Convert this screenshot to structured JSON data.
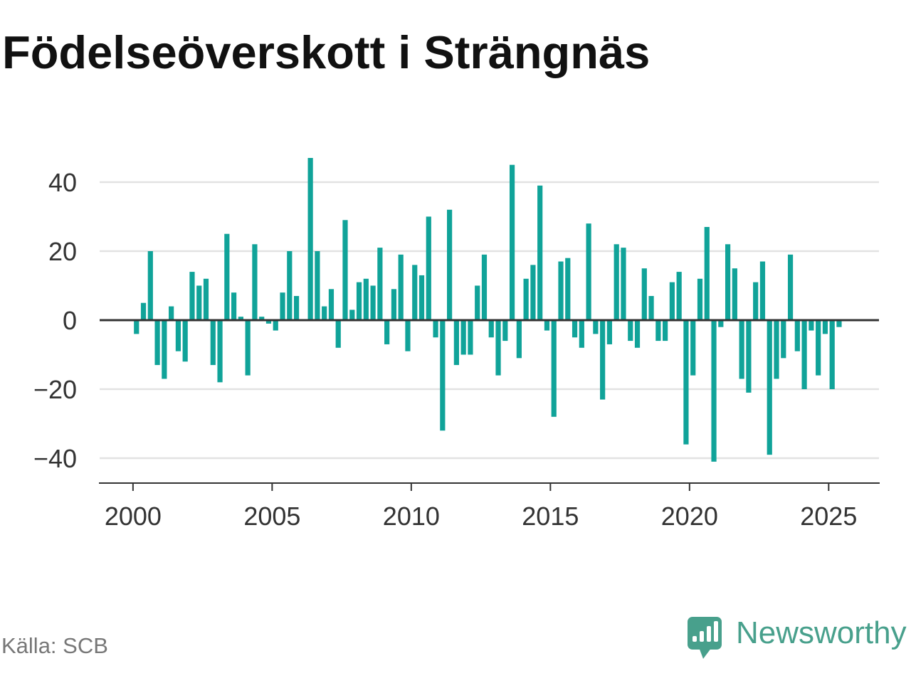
{
  "chart_data": {
    "type": "bar",
    "title": "Födelseöverskott i Strängnäs",
    "grid": true,
    "x_axis": {
      "range": [
        "1998-10-01",
        "2026-11-01"
      ],
      "ticks": [
        {
          "value": "2000-01-01",
          "label": "2000"
        },
        {
          "value": "2005-01-01",
          "label": "2005"
        },
        {
          "value": "2010-01-01",
          "label": "2010"
        },
        {
          "value": "2015-01-01",
          "label": "2015"
        },
        {
          "value": "2020-01-01",
          "label": "2020"
        },
        {
          "value": "2025-01-01",
          "label": "2025"
        }
      ]
    },
    "y_axis": {
      "range": [
        -47,
        47
      ],
      "ticks": [
        {
          "value": 40,
          "label": "40"
        },
        {
          "value": 20,
          "label": "20"
        },
        {
          "value": 0,
          "label": "0"
        },
        {
          "value": -20,
          "label": "−20"
        },
        {
          "value": -40,
          "label": "−40"
        }
      ]
    },
    "x": [
      "2000-01-01",
      "2000-04-01",
      "2000-07-01",
      "2000-10-01",
      "2001-01-01",
      "2001-04-01",
      "2001-07-01",
      "2001-10-01",
      "2002-01-01",
      "2002-04-01",
      "2002-07-01",
      "2002-10-01",
      "2003-01-01",
      "2003-04-01",
      "2003-07-01",
      "2003-10-01",
      "2004-01-01",
      "2004-04-01",
      "2004-07-01",
      "2004-10-01",
      "2005-01-01",
      "2005-04-01",
      "2005-07-01",
      "2005-10-01",
      "2006-01-01",
      "2006-04-01",
      "2006-07-01",
      "2006-10-01",
      "2007-01-01",
      "2007-04-01",
      "2007-07-01",
      "2007-10-01",
      "2008-01-01",
      "2008-04-01",
      "2008-07-01",
      "2008-10-01",
      "2009-01-01",
      "2009-04-01",
      "2009-07-01",
      "2009-10-01",
      "2010-01-01",
      "2010-04-01",
      "2010-07-01",
      "2010-10-01",
      "2011-01-01",
      "2011-04-01",
      "2011-07-01",
      "2011-10-01",
      "2012-01-01",
      "2012-04-01",
      "2012-07-01",
      "2012-10-01",
      "2013-01-01",
      "2013-04-01",
      "2013-07-01",
      "2013-10-01",
      "2014-01-01",
      "2014-04-01",
      "2014-07-01",
      "2014-10-01",
      "2015-01-01",
      "2015-04-01",
      "2015-07-01",
      "2015-10-01",
      "2016-01-01",
      "2016-04-01",
      "2016-07-01",
      "2016-10-01",
      "2017-01-01",
      "2017-04-01",
      "2017-07-01",
      "2017-10-01",
      "2018-01-01",
      "2018-04-01",
      "2018-07-01",
      "2018-10-01",
      "2019-01-01",
      "2019-04-01",
      "2019-07-01",
      "2019-10-01",
      "2020-01-01",
      "2020-04-01",
      "2020-07-01",
      "2020-10-01",
      "2021-01-01",
      "2021-04-01",
      "2021-07-01",
      "2021-10-01",
      "2022-01-01",
      "2022-04-01",
      "2022-07-01",
      "2022-10-01",
      "2023-01-01",
      "2023-04-01",
      "2023-07-01",
      "2023-10-01",
      "2024-01-01",
      "2024-04-01",
      "2024-07-01",
      "2024-10-01",
      "2025-01-01",
      "2025-04-01"
    ],
    "values": [
      -4,
      5,
      20,
      -13,
      -17,
      4,
      -9,
      -12,
      14,
      10,
      12,
      -13,
      -18,
      25,
      8,
      1,
      -16,
      22,
      1,
      -1,
      -3,
      8,
      20,
      7,
      0,
      47,
      20,
      4,
      9,
      -8,
      29,
      3,
      11,
      12,
      10,
      21,
      -7,
      9,
      19,
      -9,
      16,
      13,
      30,
      -5,
      -32,
      32,
      -13,
      -10,
      -10,
      10,
      19,
      -5,
      -16,
      -6,
      45,
      -11,
      12,
      16,
      39,
      -3,
      -28,
      17,
      18,
      -5,
      -8,
      28,
      -4,
      -23,
      -7,
      22,
      21,
      -6,
      -8,
      15,
      7,
      -6,
      -6,
      11,
      14,
      -36,
      -16,
      12,
      27,
      -41,
      -2,
      22,
      15,
      -17,
      -21,
      11,
      17,
      -39,
      -17,
      -11,
      19,
      -9,
      -20,
      -3,
      -16,
      -4,
      -20,
      -2
    ]
  },
  "source": "Källa: SCB",
  "logo": {
    "text": "Newsworthy",
    "icon": "newsworthy-logo-icon"
  },
  "colors": {
    "bar": "#10a399",
    "gridline": "#e2e2e2",
    "axis": "#333333",
    "tick_label": "#333333",
    "title": "#111111",
    "source": "#777777",
    "logo": "#48a08c"
  }
}
